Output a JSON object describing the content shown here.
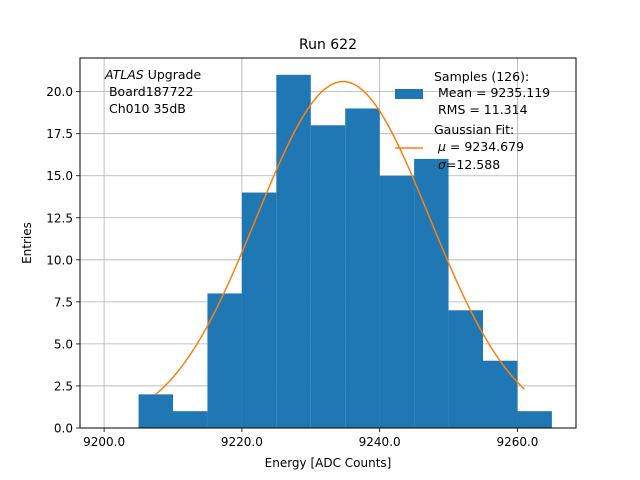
{
  "chart_data": {
    "type": "bar",
    "title": "Run 622",
    "xlabel": "Energy [ADC Counts]",
    "ylabel": "Entries",
    "xlim": [
      9196.5,
      9268.5
    ],
    "ylim": [
      0,
      22
    ],
    "grid": true,
    "xticks": [
      9200,
      9220,
      9240,
      9260
    ],
    "xtick_labels": [
      "9200.0",
      "9220.0",
      "9240.0",
      "9260.0"
    ],
    "yticks": [
      0,
      2.5,
      5,
      7.5,
      10,
      12.5,
      15,
      17.5,
      20
    ],
    "ytick_labels": [
      "0.0",
      "2.5",
      "5.0",
      "7.5",
      "10.0",
      "12.5",
      "15.0",
      "17.5",
      "20.0"
    ],
    "histogram": {
      "name": "Samples",
      "color": "#1f77b4",
      "bin_edges": [
        9205,
        9210,
        9215,
        9220,
        9225,
        9230,
        9235,
        9240,
        9245,
        9250,
        9255,
        9260,
        9265
      ],
      "counts": [
        2,
        1,
        8,
        14,
        21,
        18,
        19,
        15,
        16,
        7,
        4,
        1
      ]
    },
    "fit": {
      "name": "Gaussian Fit",
      "color": "#ff7f0e",
      "mu": 9234.679,
      "sigma": 12.588,
      "amplitude": 20.6,
      "x_range": [
        9207.5,
        9261
      ]
    },
    "annotation": {
      "italic": "ATLAS",
      "line1_rest": " Upgrade",
      "line2": " Board187722",
      "line3": " Ch010 35dB"
    },
    "legend": {
      "position": "top-right",
      "samples_line1": "Samples (126):",
      "samples_line2": " Mean = 9235.119",
      "samples_line3": " RMS = 11.314",
      "fit_line1": "Gaussian Fit:",
      "fit_mu_symbol": "μ",
      "fit_mu_rest": " = 9234.679",
      "fit_sigma_symbol": "σ",
      "fit_sigma_rest": "=12.588"
    }
  }
}
